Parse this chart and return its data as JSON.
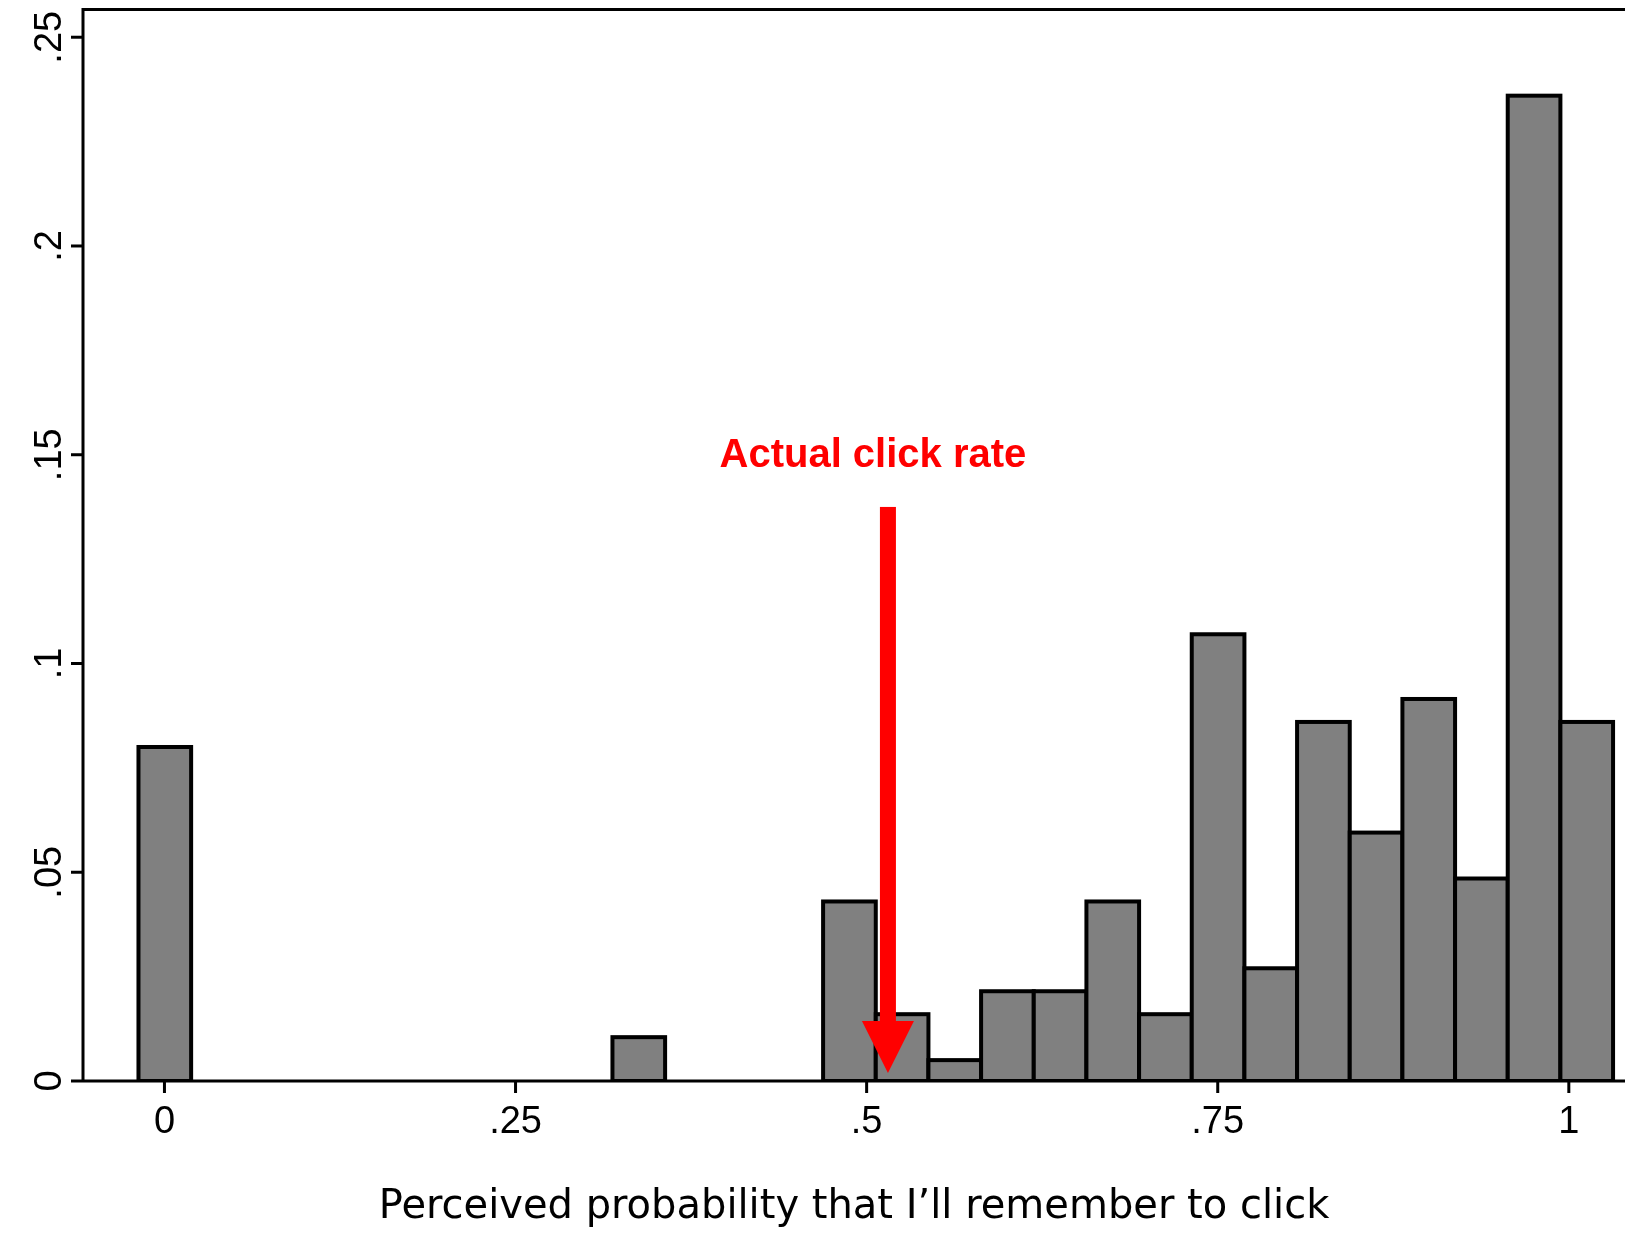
{
  "chart_data": {
    "type": "histogram",
    "xlabel": "Perceived probability that I’ll remember to click",
    "bins": [
      -0.0185,
      0.019,
      0.0565,
      0.094,
      0.1315,
      0.169,
      0.2065,
      0.244,
      0.2815,
      0.319,
      0.3565,
      0.394,
      0.4315,
      0.469,
      0.5065,
      0.544,
      0.5815,
      0.619,
      0.6565,
      0.694,
      0.7315,
      0.769,
      0.8065,
      0.844,
      0.8815,
      0.919,
      0.9565,
      0.994,
      1.0315
    ],
    "values": [
      0.08,
      0,
      0,
      0,
      0,
      0,
      0,
      0,
      0,
      0.0105,
      0,
      0,
      0,
      0.043,
      0.016,
      0.005,
      0.0215,
      0.0215,
      0.043,
      0.016,
      0.107,
      0.027,
      0.086,
      0.0595,
      0.0915,
      0.0485,
      0.236,
      0.086
    ],
    "color": "#808080",
    "xlim": [
      -0.058,
      1.04
    ],
    "ylim": [
      0,
      0.257
    ],
    "xticks": [
      0,
      {
        "value": 0.25,
        "label": ".25"
      },
      {
        "value": 0.5,
        "label": ".5"
      },
      {
        "value": 0.75,
        "label": ".75"
      },
      1
    ],
    "yticks": [
      0,
      {
        "value": 0.05,
        "label": ".05"
      },
      {
        "value": 0.1,
        "label": ".1"
      },
      {
        "value": 0.15,
        "label": ".15"
      },
      {
        "value": 0.2,
        "label": ".2"
      },
      {
        "value": 0.25,
        "label": ".25"
      }
    ],
    "annotations": [
      "Actual click rate"
    ],
    "grid": false,
    "legend": false
  }
}
